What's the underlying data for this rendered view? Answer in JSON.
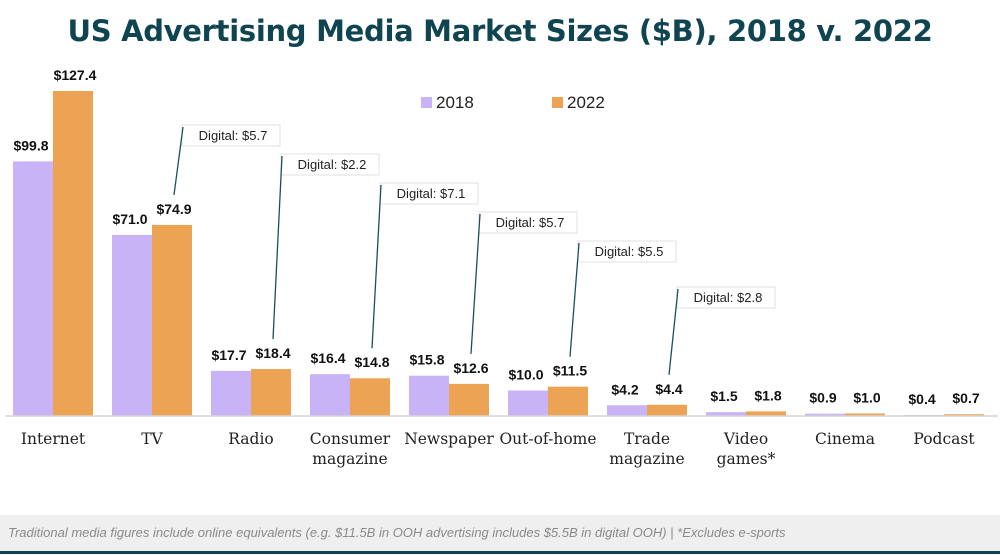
{
  "chart_data": {
    "type": "bar",
    "title": "US Advertising Media Market Sizes ($B), 2018 v. 2022",
    "categories": [
      [
        "Internet"
      ],
      [
        "TV"
      ],
      [
        "Radio"
      ],
      [
        "Consumer",
        "magazine"
      ],
      [
        "Newspaper"
      ],
      [
        "Out-of-home"
      ],
      [
        "Trade",
        "magazine"
      ],
      [
        "Video",
        "games*"
      ],
      [
        "Cinema"
      ],
      [
        "Podcast"
      ]
    ],
    "series": [
      {
        "name": "2018",
        "color": "#c9b3f7",
        "values": [
          99.8,
          71.0,
          17.7,
          16.4,
          15.8,
          10.0,
          4.2,
          1.5,
          0.9,
          0.4
        ],
        "labels": [
          "$99.8",
          "$71.0",
          "$17.7",
          "$16.4",
          "$15.8",
          "$10.0",
          "$4.2",
          "$1.5",
          "$0.9",
          "$0.4"
        ]
      },
      {
        "name": "2022",
        "color": "#eda354",
        "values": [
          127.4,
          74.9,
          18.4,
          14.8,
          12.6,
          11.5,
          4.4,
          1.8,
          1.0,
          0.7
        ],
        "labels": [
          "$127.4",
          "$74.9",
          "$18.4",
          "$14.8",
          "$12.6",
          "$11.5",
          "$4.4",
          "$1.8",
          "$1.0",
          "$0.7"
        ]
      }
    ],
    "annotations": [
      {
        "category_index": 1,
        "text": "Digital: $5.7",
        "value": 5.7
      },
      {
        "category_index": 2,
        "text": "Digital: $2.2",
        "value": 2.2
      },
      {
        "category_index": 3,
        "text": "Digital: $7.1",
        "value": 7.1
      },
      {
        "category_index": 4,
        "text": "Digital: $5.7",
        "value": 5.7
      },
      {
        "category_index": 5,
        "text": "Digital: $5.5",
        "value": 5.5
      },
      {
        "category_index": 6,
        "text": "Digital: $2.8",
        "value": 2.8
      }
    ],
    "ylim": [
      0,
      130
    ],
    "legend": "top-center",
    "grid": false
  },
  "footer": {
    "note": "Traditional media figures include online equivalents (e.g. $11.5B in OOH advertising includes $5.5B in digital OOH) | *Excludes e-sports"
  }
}
